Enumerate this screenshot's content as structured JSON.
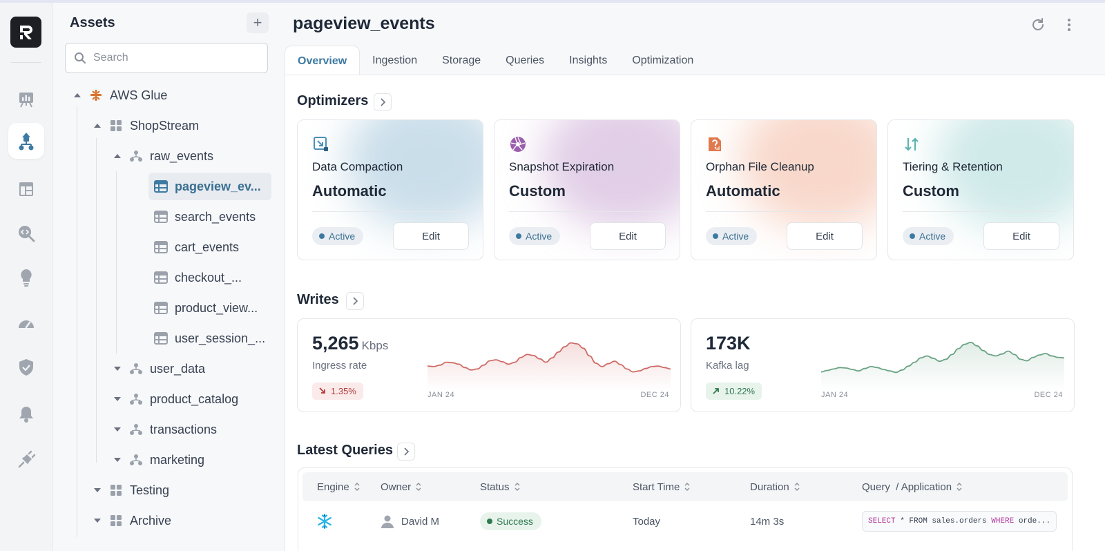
{
  "assets": {
    "title": "Assets",
    "add_label": "+",
    "search_placeholder": "Search",
    "tree": [
      {
        "label": "AWS Glue",
        "icon": "aws-glue-icon",
        "expanded": true
      },
      {
        "label": "ShopStream",
        "icon": "database-icon",
        "expanded": true
      },
      {
        "label": "raw_events",
        "icon": "schema-icon",
        "expanded": true
      },
      {
        "label": "pageview_ev...",
        "icon": "table-icon",
        "selected": true
      },
      {
        "label": "search_events",
        "icon": "table-icon"
      },
      {
        "label": "cart_events",
        "icon": "table-icon"
      },
      {
        "label": "checkout_...",
        "icon": "table-icon"
      },
      {
        "label": "product_view...",
        "icon": "table-icon"
      },
      {
        "label": "user_session_...",
        "icon": "table-icon"
      },
      {
        "label": "user_data",
        "icon": "schema-icon",
        "expanded": false
      },
      {
        "label": "product_catalog",
        "icon": "schema-icon",
        "expanded": false
      },
      {
        "label": "transactions",
        "icon": "schema-icon",
        "expanded": false
      },
      {
        "label": "marketing",
        "icon": "schema-icon",
        "expanded": false
      },
      {
        "label": "Testing",
        "icon": "database-icon",
        "expanded": false
      },
      {
        "label": "Archive",
        "icon": "database-icon",
        "expanded": false
      }
    ]
  },
  "main": {
    "title": "pageview_events",
    "tabs": [
      "Overview",
      "Ingestion",
      "Storage",
      "Queries",
      "Insights",
      "Optimization"
    ],
    "active_tab": "Overview"
  },
  "optimizers": {
    "title": "Optimizers",
    "cards": [
      {
        "name": "Data Compaction",
        "mode": "Automatic",
        "status": "Active",
        "edit": "Edit",
        "icon": "compaction-icon",
        "accent": "#9fc3d9"
      },
      {
        "name": "Snapshot Expiration",
        "mode": "Custom",
        "status": "Active",
        "edit": "Edit",
        "icon": "aperture-icon",
        "accent": "#c9a6d3"
      },
      {
        "name": "Orphan File Cleanup",
        "mode": "Automatic",
        "status": "Active",
        "edit": "Edit",
        "icon": "orphan-file-icon",
        "accent": "#f3b8a0"
      },
      {
        "name": "Tiering & Retention",
        "mode": "Custom",
        "status": "Active",
        "edit": "Edit",
        "icon": "tiering-arrows-icon",
        "accent": "#a9d8d8"
      }
    ]
  },
  "writes": {
    "title": "Writes",
    "cards": [
      {
        "value": "5,265",
        "unit": "Kbps",
        "label": "Ingress rate",
        "change": "1.35%",
        "direction": "down",
        "x_start": "JAN 24",
        "x_end": "DEC 24",
        "color": "#cf6b66",
        "series": [
          34,
          33,
          36,
          42,
          41,
          38,
          31,
          26,
          28,
          36,
          45,
          47,
          43,
          38,
          42,
          52,
          58,
          56,
          49,
          42,
          51,
          63,
          74,
          82,
          80,
          71,
          55,
          40,
          33,
          39,
          44,
          37,
          28,
          22,
          24,
          29,
          33,
          34,
          31,
          28
        ]
      },
      {
        "value": "173K",
        "unit": "",
        "label": "Kafka lag",
        "change": "10.22%",
        "direction": "up",
        "x_start": "JAN 24",
        "x_end": "DEC 24",
        "color": "#6aa384",
        "series": [
          22,
          25,
          28,
          31,
          30,
          27,
          24,
          29,
          33,
          31,
          27,
          24,
          21,
          26,
          34,
          42,
          51,
          55,
          50,
          44,
          48,
          58,
          70,
          79,
          83,
          76,
          66,
          58,
          55,
          59,
          65,
          58,
          48,
          45,
          52,
          57,
          60,
          55,
          52,
          51
        ]
      }
    ]
  },
  "latest_queries": {
    "title": "Latest Queries",
    "columns": [
      "Engine",
      "Owner",
      "Status",
      "Start Time",
      "Duration",
      "Query  / Application"
    ],
    "rows": [
      {
        "engine_icon": "snowflake-icon",
        "owner": "David M",
        "status": "Success",
        "start_time": "Today",
        "duration": "14m 3s",
        "query_kw1": "SELECT",
        "query_mid": " * FROM sales.orders ",
        "query_kw2": "WHERE",
        "query_end": " orde..."
      }
    ]
  },
  "colors": {
    "accent": "#3d7aa1",
    "success": "#2f7a4f",
    "danger": "#b23a3a"
  }
}
